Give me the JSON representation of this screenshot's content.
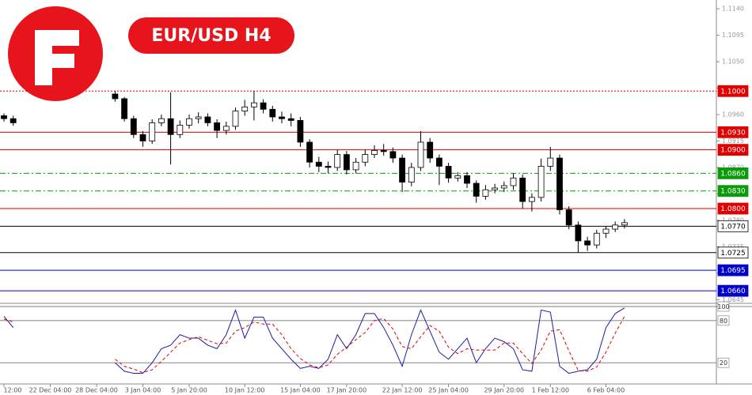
{
  "chart_data": {
    "type": "candlestick",
    "title": "EUR/USD H4",
    "categories": [
      "12:00",
      null,
      null,
      null,
      null,
      "22 Dec 04:00",
      null,
      null,
      null,
      null,
      "28 Dec 04:00",
      null,
      null,
      null,
      null,
      "3 Jan 04:00",
      null,
      null,
      null,
      null,
      "5 Jan 20:00",
      null,
      null,
      null,
      null,
      null,
      "10 Jan 12:00",
      null,
      null,
      null,
      null,
      null,
      "15 Jan 04:00",
      null,
      null,
      null,
      null,
      "17 Jan 20:00",
      null,
      null,
      null,
      null,
      null,
      "22 Jan 12:00",
      null,
      null,
      null,
      null,
      "25 Jan 04:00",
      null,
      null,
      null,
      null,
      null,
      "29 Jan 20:00",
      null,
      null,
      null,
      null,
      "1 Feb 12:00",
      null,
      null,
      null,
      null,
      null,
      "6 Feb 04:00",
      null,
      null
    ],
    "open": [
      1.0958,
      1.0953,
      null,
      null,
      null,
      null,
      null,
      null,
      null,
      null,
      null,
      null,
      1.0995,
      1.0987,
      1.0953,
      1.0926,
      1.0915,
      1.0946,
      1.0953,
      1.0926,
      1.0942,
      1.0953,
      1.0956,
      1.0946,
      1.0933,
      1.094,
      1.0966,
      1.0973,
      1.098,
      1.0969,
      1.0956,
      1.0953,
      1.095,
      1.0913,
      1.0879,
      1.0872,
      1.087,
      1.0892,
      1.0866,
      1.0879,
      1.0892,
      1.0899,
      1.0897,
      1.0886,
      1.0845,
      1.087,
      1.0913,
      1.0886,
      1.0872,
      1.0852,
      1.0856,
      1.0843,
      1.0821,
      1.0832,
      1.0835,
      1.0839,
      1.0852,
      1.0812,
      1.0819,
      1.0872,
      1.0886,
      1.0798,
      1.0772,
      1.0745,
      1.0738,
      1.0758,
      1.0765,
      1.0772
    ],
    "high": [
      1.0962,
      1.0958,
      null,
      null,
      null,
      null,
      null,
      null,
      null,
      null,
      null,
      null,
      1.1,
      1.099,
      1.0958,
      1.0932,
      1.0952,
      1.096,
      1.0998,
      1.095,
      1.096,
      1.0964,
      1.0962,
      1.0952,
      1.0948,
      1.0972,
      1.0985,
      1.1,
      1.0986,
      1.0975,
      1.0965,
      1.0962,
      1.0956,
      1.0918,
      1.0888,
      1.088,
      1.09,
      1.0898,
      1.0886,
      1.09,
      1.0908,
      1.091,
      1.0904,
      1.0892,
      1.0878,
      1.0932,
      1.092,
      1.0892,
      1.0878,
      1.0862,
      1.0862,
      1.0848,
      1.084,
      1.0842,
      1.0846,
      1.086,
      1.0858,
      1.0826,
      1.0885,
      1.0905,
      1.0892,
      1.0804,
      1.0778,
      1.0752,
      1.0764,
      1.077,
      1.0778,
      1.0782
    ],
    "low": [
      1.0948,
      1.0941,
      null,
      null,
      null,
      null,
      null,
      null,
      null,
      null,
      null,
      null,
      1.0982,
      1.0948,
      1.092,
      1.0905,
      1.091,
      1.094,
      1.0875,
      1.092,
      1.0936,
      1.0945,
      1.094,
      1.092,
      1.0926,
      1.0934,
      1.0958,
      1.095,
      1.0962,
      1.0948,
      1.0945,
      1.094,
      1.0905,
      1.087,
      1.0862,
      1.086,
      1.0864,
      1.0858,
      1.086,
      1.0872,
      1.0886,
      1.089,
      1.0878,
      1.0828,
      1.0838,
      1.0864,
      1.0878,
      1.084,
      1.0844,
      1.0846,
      1.0835,
      1.081,
      1.0815,
      1.0826,
      1.0828,
      1.0832,
      1.08,
      1.0795,
      1.0812,
      1.0864,
      1.079,
      1.0765,
      1.0725,
      1.0728,
      1.0732,
      1.075,
      1.076,
      1.0766
    ],
    "close": [
      1.0953,
      1.0946,
      null,
      null,
      null,
      null,
      null,
      null,
      null,
      null,
      null,
      null,
      1.0987,
      1.0953,
      1.0926,
      1.0915,
      1.0946,
      1.0953,
      1.0926,
      1.0942,
      1.0953,
      1.0956,
      1.0946,
      1.0933,
      1.094,
      1.0966,
      1.0973,
      1.098,
      1.0969,
      1.0956,
      1.0953,
      1.095,
      1.0913,
      1.0879,
      1.0872,
      1.087,
      1.0892,
      1.0866,
      1.0879,
      1.0892,
      1.0899,
      1.0897,
      1.0886,
      1.0845,
      1.087,
      1.0913,
      1.0886,
      1.0872,
      1.0852,
      1.0856,
      1.0843,
      1.0821,
      1.0832,
      1.0835,
      1.0839,
      1.0852,
      1.0812,
      1.0819,
      1.0872,
      1.0886,
      1.0798,
      1.0772,
      1.0745,
      1.0738,
      1.0758,
      1.0765,
      1.0772,
      1.0776
    ],
    "ylim": [
      1.064,
      1.1155
    ],
    "yticks": [
      {
        "value": 1.114,
        "label": "1.1140"
      },
      {
        "value": 1.1095,
        "label": "1.1095"
      },
      {
        "value": 1.105,
        "label": "1.1050"
      },
      {
        "value": 1.1005,
        "label": "1.1005"
      },
      {
        "value": 1.096,
        "label": "1.0960"
      },
      {
        "value": 1.0915,
        "label": "1.0915"
      },
      {
        "value": 1.087,
        "label": "1.0870"
      },
      {
        "value": 1.0825,
        "label": "1.0825"
      },
      {
        "value": 1.078,
        "label": "1.0780"
      },
      {
        "value": 1.0735,
        "label": "1.0735"
      },
      {
        "value": 1.069,
        "label": "1.0690"
      },
      {
        "value": 1.0645,
        "label": "1.0645"
      }
    ],
    "levels": [
      {
        "value": 1.1,
        "label": "1.1000",
        "color": "#e00000",
        "dash": "dotted"
      },
      {
        "value": 1.093,
        "label": "1.0930",
        "color": "#e00000",
        "dash": "solid"
      },
      {
        "value": 1.09,
        "label": "1.0900",
        "color": "#e00000",
        "dash": "solid"
      },
      {
        "value": 1.086,
        "label": "1.0860",
        "color": "#0a9a0a",
        "dash": "dashdot"
      },
      {
        "value": 1.083,
        "label": "1.0830",
        "color": "#0a9a0a",
        "dash": "dashdot"
      },
      {
        "value": 1.08,
        "label": "1.0800",
        "color": "#e00000",
        "dash": "solid"
      },
      {
        "value": 1.077,
        "label": "1.0770",
        "color": "#000000",
        "dash": "solid"
      },
      {
        "value": 1.0725,
        "label": "1.0725",
        "color": "#000000",
        "dash": "solid"
      },
      {
        "value": 1.0695,
        "label": "1.0695",
        "color": "#0000cc",
        "dash": "solid"
      },
      {
        "value": 1.066,
        "label": "1.0660",
        "color": "#0000cc",
        "dash": "solid"
      }
    ],
    "indicator": {
      "type": "line",
      "ylim": [
        0,
        100
      ],
      "yticks": [
        20,
        80,
        100
      ],
      "series": [
        {
          "color": "#1a1aa8",
          "dash": "solid",
          "values": [
            86,
            70,
            null,
            null,
            null,
            null,
            null,
            null,
            null,
            null,
            null,
            null,
            20,
            8,
            5,
            5,
            20,
            40,
            45,
            60,
            55,
            55,
            45,
            40,
            60,
            95,
            55,
            85,
            85,
            55,
            40,
            25,
            12,
            15,
            12,
            25,
            60,
            40,
            60,
            90,
            90,
            70,
            45,
            15,
            60,
            95,
            65,
            35,
            25,
            40,
            55,
            20,
            40,
            55,
            50,
            40,
            10,
            8,
            95,
            92,
            15,
            5,
            8,
            10,
            25,
            70,
            90,
            98
          ]
        },
        {
          "color": "#e00000",
          "dash": "dashed",
          "values": [
            82,
            78,
            null,
            null,
            null,
            null,
            null,
            null,
            null,
            null,
            null,
            null,
            25,
            15,
            11,
            6,
            10,
            22,
            35,
            48,
            53,
            57,
            52,
            47,
            48,
            65,
            70,
            78,
            75,
            75,
            60,
            40,
            26,
            17,
            13,
            17,
            32,
            42,
            53,
            63,
            80,
            83,
            68,
            43,
            40,
            57,
            73,
            65,
            42,
            33,
            40,
            38,
            38,
            38,
            48,
            48,
            33,
            19,
            38,
            65,
            67,
            37,
            9,
            8,
            14,
            35,
            62,
            86
          ]
        }
      ]
    }
  }
}
